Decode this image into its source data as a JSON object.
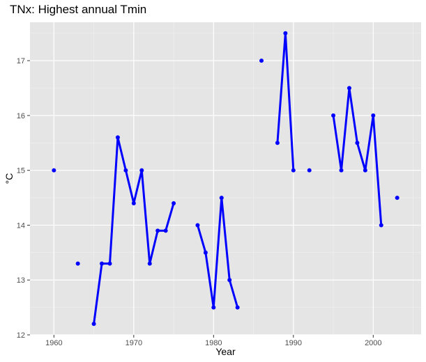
{
  "chart_data": {
    "type": "line",
    "title": "TNx: Highest annual Tmin",
    "xlabel": "Year",
    "ylabel": "°C",
    "xlim": [
      1957,
      2006
    ],
    "ylim": [
      12.0,
      17.7
    ],
    "x_ticks": [
      1960,
      1970,
      1980,
      1990,
      2000
    ],
    "y_ticks": [
      12,
      13,
      14,
      15,
      16,
      17
    ],
    "grid": true,
    "background": "#e5e5e5",
    "series_color": "#0000ff",
    "points": [
      [
        1960,
        15.0
      ],
      [
        1963,
        13.3
      ],
      [
        1965,
        12.2
      ],
      [
        1966,
        13.3
      ],
      [
        1967,
        13.3
      ],
      [
        1968,
        15.6
      ],
      [
        1969,
        15.0
      ],
      [
        1970,
        14.4
      ],
      [
        1971,
        15.0
      ],
      [
        1972,
        13.3
      ],
      [
        1973,
        13.9
      ],
      [
        1974,
        13.9
      ],
      [
        1975,
        14.4
      ],
      [
        1978,
        14.0
      ],
      [
        1979,
        13.5
      ],
      [
        1980,
        12.5
      ],
      [
        1981,
        14.5
      ],
      [
        1982,
        13.0
      ],
      [
        1983,
        12.5
      ],
      [
        1986,
        17.0
      ],
      [
        1988,
        15.5
      ],
      [
        1989,
        17.5
      ],
      [
        1990,
        15.0
      ],
      [
        1992,
        15.0
      ],
      [
        1995,
        16.0
      ],
      [
        1996,
        15.0
      ],
      [
        1997,
        16.5
      ],
      [
        1998,
        15.5
      ],
      [
        1999,
        15.0
      ],
      [
        2000,
        16.0
      ],
      [
        2001,
        14.0
      ],
      [
        2003,
        14.5
      ]
    ]
  }
}
